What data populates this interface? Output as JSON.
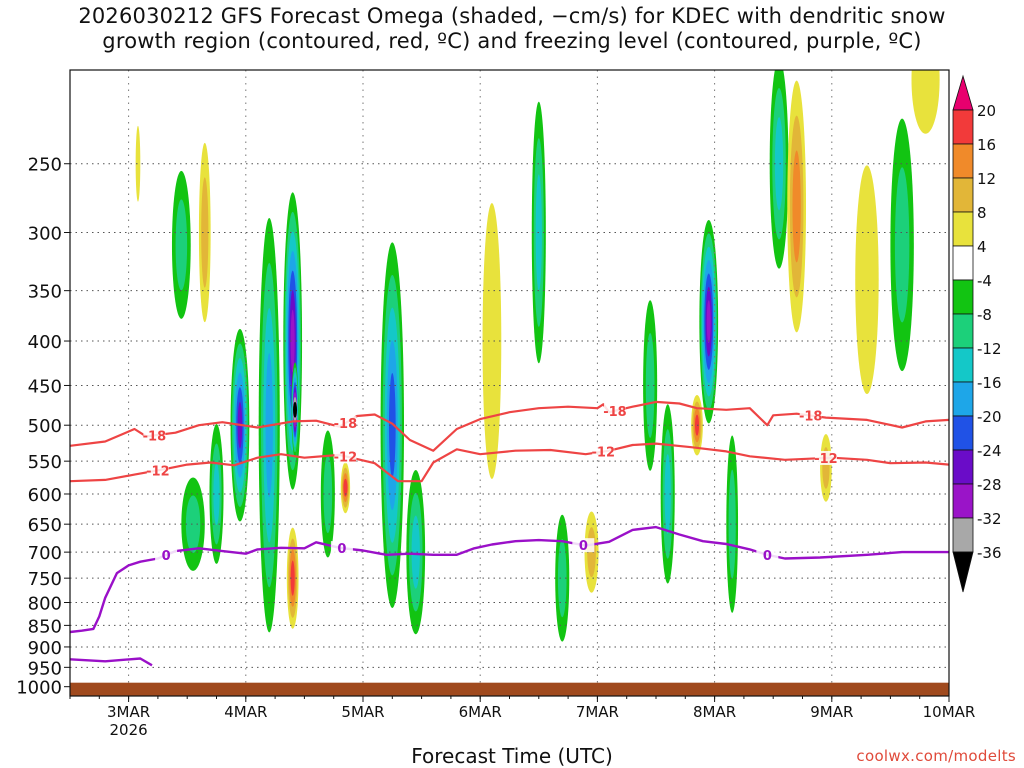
{
  "title": {
    "line1": "2026030212 GFS Forecast Omega (shaded, −cm/s) for KDEC with dendritic snow",
    "line2": "growth region (contoured, red, ºC) and freezing level (contoured, purple, ºC)"
  },
  "watermark": "coolwx.com/modelts",
  "chart_data": {
    "type": "heatmap",
    "title": "2026030212 GFS Forecast Omega (shaded, −cm/s) for KDEC with dendritic snow growth region (contoured, red, ºC) and freezing level (contoured, purple, ºC)",
    "xlabel": "Forecast Time (UTC)",
    "ylabel": "",
    "x_range_days": [
      0,
      7.5
    ],
    "x_ticks": [
      {
        "day": 0.5,
        "label": "3MAR",
        "sub": "2026"
      },
      {
        "day": 1.5,
        "label": "4MAR"
      },
      {
        "day": 2.5,
        "label": "5MAR"
      },
      {
        "day": 3.5,
        "label": "6MAR"
      },
      {
        "day": 4.5,
        "label": "7MAR"
      },
      {
        "day": 5.5,
        "label": "8MAR"
      },
      {
        "day": 6.5,
        "label": "9MAR"
      },
      {
        "day": 7.5,
        "label": "10MAR"
      }
    ],
    "y_range_hpa": [
      195,
      1025
    ],
    "y_ticks": [
      250,
      300,
      350,
      400,
      450,
      500,
      550,
      600,
      650,
      700,
      750,
      800,
      850,
      900,
      950,
      1000
    ],
    "colorbar": {
      "levels": [
        20,
        16,
        12,
        8,
        4,
        -4,
        -8,
        -12,
        -16,
        -20,
        -24,
        -28,
        -32,
        -36
      ],
      "colors": [
        "#e8006e",
        "#f23a3a",
        "#f08a2a",
        "#e2b638",
        "#e8e23c",
        "#ffffff",
        "#12c412",
        "#1cd07a",
        "#14c8c8",
        "#1ea6e8",
        "#2052e6",
        "#6a0cc8",
        "#9a14c8",
        "#a8a8a8",
        "#000000"
      ]
    },
    "shading": [
      {
        "day": 0.58,
        "p": 250,
        "w": 0.02,
        "ph": 50,
        "v": 6
      },
      {
        "day": 0.95,
        "p": 310,
        "w": 0.08,
        "ph": 120,
        "v": -8
      },
      {
        "day": 1.05,
        "p": 650,
        "w": 0.1,
        "ph": 160,
        "v": -10
      },
      {
        "day": 1.15,
        "p": 300,
        "w": 0.05,
        "ph": 140,
        "v": 8
      },
      {
        "day": 1.25,
        "p": 600,
        "w": 0.06,
        "ph": 220,
        "v": -12
      },
      {
        "day": 1.45,
        "p": 500,
        "w": 0.08,
        "ph": 250,
        "v": -24
      },
      {
        "day": 1.7,
        "p": 500,
        "w": 0.09,
        "ph": 500,
        "v": -16
      },
      {
        "day": 1.9,
        "p": 400,
        "w": 0.08,
        "ph": 300,
        "v": -28
      },
      {
        "day": 1.92,
        "p": 480,
        "w": 0.03,
        "ph": 120,
        "v": -36
      },
      {
        "day": 1.9,
        "p": 750,
        "w": 0.05,
        "ph": 200,
        "v": 16
      },
      {
        "day": 2.2,
        "p": 600,
        "w": 0.06,
        "ph": 200,
        "v": -10
      },
      {
        "day": 2.35,
        "p": 590,
        "w": 0.04,
        "ph": 80,
        "v": 16
      },
      {
        "day": 2.75,
        "p": 500,
        "w": 0.1,
        "ph": 450,
        "v": -20
      },
      {
        "day": 2.95,
        "p": 700,
        "w": 0.08,
        "ph": 300,
        "v": -12
      },
      {
        "day": 3.6,
        "p": 400,
        "w": 0.08,
        "ph": 280,
        "v": 6
      },
      {
        "day": 4.0,
        "p": 300,
        "w": 0.06,
        "ph": 200,
        "v": -14
      },
      {
        "day": 4.2,
        "p": 750,
        "w": 0.06,
        "ph": 250,
        "v": -10
      },
      {
        "day": 4.45,
        "p": 700,
        "w": 0.06,
        "ph": 150,
        "v": 10
      },
      {
        "day": 4.95,
        "p": 450,
        "w": 0.06,
        "ph": 200,
        "v": -8
      },
      {
        "day": 5.1,
        "p": 600,
        "w": 0.06,
        "ph": 280,
        "v": -12
      },
      {
        "day": 5.35,
        "p": 500,
        "w": 0.05,
        "ph": 80,
        "v": 18
      },
      {
        "day": 5.45,
        "p": 380,
        "w": 0.08,
        "ph": 200,
        "v": -28
      },
      {
        "day": 5.65,
        "p": 650,
        "w": 0.05,
        "ph": 300,
        "v": -10
      },
      {
        "day": 6.05,
        "p": 250,
        "w": 0.08,
        "ph": 180,
        "v": -12
      },
      {
        "day": 6.2,
        "p": 280,
        "w": 0.08,
        "ph": 200,
        "v": 14
      },
      {
        "day": 6.45,
        "p": 560,
        "w": 0.05,
        "ph": 100,
        "v": 8
      },
      {
        "day": 6.8,
        "p": 340,
        "w": 0.1,
        "ph": 200,
        "v": 6
      },
      {
        "day": 7.1,
        "p": 310,
        "w": 0.1,
        "ph": 200,
        "v": -8
      },
      {
        "day": 7.3,
        "p": 200,
        "w": 0.12,
        "ph": 120,
        "v": 6
      }
    ],
    "series": [
      {
        "name": "-18 C (dendritic growth top)",
        "color": "#ee4444",
        "label": "-18",
        "label_days": [
          0.72,
          2.35,
          4.65,
          6.32
        ],
        "days": [
          0,
          0.3,
          0.55,
          0.65,
          0.9,
          1.1,
          1.3,
          1.6,
          1.9,
          2.1,
          2.3,
          2.45,
          2.6,
          2.75,
          2.9,
          3.1,
          3.3,
          3.5,
          3.75,
          4.0,
          4.25,
          4.5,
          4.55,
          4.6,
          4.8,
          5.0,
          5.2,
          5.35,
          5.6,
          5.8,
          5.95,
          6.0,
          6.2,
          6.45,
          6.8,
          7.1,
          7.3,
          7.5
        ],
        "hpa": [
          528,
          522,
          505,
          515,
          510,
          500,
          496,
          503,
          495,
          494,
          502,
          488,
          486,
          498,
          520,
          535,
          505,
          492,
          483,
          478,
          476,
          478,
          473,
          483,
          476,
          470,
          472,
          478,
          480,
          478,
          500,
          487,
          485,
          490,
          493,
          503,
          495,
          493
        ]
      },
      {
        "name": "-12 C (dendritic growth bottom)",
        "color": "#ee4444",
        "label": "-12",
        "label_days": [
          0.75,
          2.35,
          4.55,
          6.45
        ],
        "days": [
          0,
          0.3,
          0.55,
          0.8,
          1.0,
          1.2,
          1.4,
          1.6,
          1.8,
          2.0,
          2.3,
          2.6,
          2.8,
          3.0,
          3.1,
          3.3,
          3.5,
          3.8,
          4.1,
          4.4,
          4.6,
          4.8,
          5.0,
          5.3,
          5.6,
          5.8,
          6.1,
          6.5,
          6.8,
          7.0,
          7.3,
          7.5
        ],
        "hpa": [
          580,
          578,
          570,
          562,
          555,
          552,
          556,
          545,
          540,
          545,
          541,
          553,
          580,
          580,
          552,
          533,
          540,
          535,
          534,
          540,
          535,
          527,
          525,
          530,
          536,
          543,
          548,
          545,
          548,
          553,
          552,
          555
        ]
      }
    ],
    "freezing_level": {
      "name": "0 C freezing level",
      "color": "#9a10c8",
      "label": "0",
      "label_days": [
        0.82,
        2.32,
        4.38,
        5.95
      ],
      "days": [
        0,
        0.1,
        0.2,
        0.25,
        0.3,
        0.4,
        0.5,
        0.6,
        0.75,
        0.9,
        1.1,
        1.3,
        1.5,
        1.6,
        1.8,
        2.0,
        2.1,
        2.3,
        2.5,
        2.7,
        2.9,
        3.1,
        3.3,
        3.45,
        3.6,
        3.8,
        4.0,
        4.2,
        4.4,
        4.6,
        4.8,
        5.0,
        5.2,
        5.4,
        5.6,
        5.7,
        5.8,
        5.95,
        6.1,
        6.4,
        6.8,
        7.1,
        7.5
      ],
      "hpa": [
        865,
        862,
        858,
        830,
        790,
        740,
        725,
        718,
        712,
        698,
        693,
        698,
        703,
        695,
        692,
        693,
        682,
        692,
        697,
        705,
        703,
        705,
        705,
        693,
        686,
        680,
        678,
        680,
        688,
        681,
        660,
        655,
        668,
        680,
        685,
        690,
        695,
        705,
        712,
        710,
        705,
        700,
        700
      ],
      "lower_days": [
        0,
        0.3,
        0.6,
        0.7
      ],
      "lower_hpa": [
        930,
        935,
        928,
        945
      ]
    },
    "terrain_hpa": 1000
  }
}
